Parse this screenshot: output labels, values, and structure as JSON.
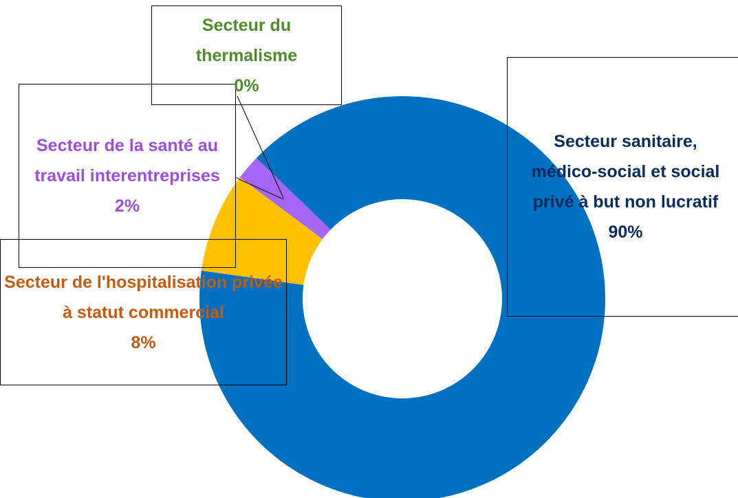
{
  "chart_data": {
    "type": "donut",
    "categories": [
      "Secteur sanitaire, médico-social et social privé à but non lucratif",
      "Secteur de l'hospitalisation privée à statut commercial",
      "Secteur de la santé au travail interentreprises",
      "Secteur du thermalisme"
    ],
    "values": [
      90,
      8,
      2,
      0
    ],
    "value_labels": [
      "90%",
      "8%",
      "2%",
      "0%"
    ],
    "colors": [
      "#0070c0",
      "#ffc000",
      "#a366f5",
      "#70ad47"
    ],
    "label_colors": [
      "#0d2a5c",
      "#c55a11",
      "#9a4fe0",
      "#4f8a2c"
    ]
  }
}
